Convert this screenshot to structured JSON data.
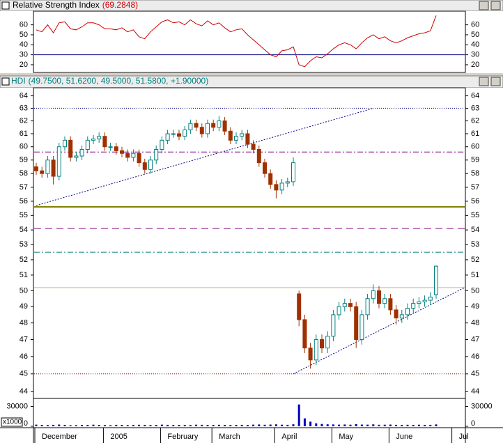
{
  "chart_data": [
    {
      "type": "line",
      "title": "Relative Strength Index",
      "subtitle": "(69.2848)",
      "color": "#cc0000",
      "values": [
        55,
        53,
        60,
        52,
        62,
        63,
        56,
        55,
        58,
        62,
        62,
        60,
        56,
        56,
        55,
        57,
        53,
        55,
        48,
        46,
        53,
        58,
        63,
        65,
        62,
        63,
        60,
        65,
        61,
        59,
        64,
        60,
        62,
        57,
        53,
        55,
        56,
        50,
        45,
        40,
        35,
        30,
        28,
        34,
        35,
        38,
        20,
        18,
        24,
        28,
        27,
        31,
        36,
        40,
        42,
        40,
        36,
        42,
        47,
        50,
        46,
        48,
        44,
        42,
        44,
        47,
        49,
        51,
        52,
        54,
        69.2848,
        null,
        null,
        null,
        null,
        null
      ],
      "ylim": [
        13,
        73
      ],
      "yticks": [
        20,
        30,
        40,
        50,
        60
      ],
      "levels": [
        {
          "value": 30,
          "color": "#000080",
          "style": "solid"
        }
      ]
    },
    {
      "type": "candlestick",
      "title": "HDI",
      "subtitle": "(49.7500, 51.6200, 49.5000, 51.5800, +1.90000)",
      "up_color": "#008080",
      "down_color": "#a03000",
      "log_scale": true,
      "open": [
        58.5,
        58.2,
        58.0,
        59.0,
        57.8,
        60.0,
        60.5,
        59.2,
        59.3,
        59.8,
        60.5,
        60.6,
        60.8,
        60.0,
        60.0,
        59.7,
        59.5,
        59.2,
        59.5,
        58.8,
        58.3,
        59.0,
        59.8,
        60.5,
        61.0,
        61.0,
        60.8,
        61.3,
        61.8,
        61.5,
        61.0,
        61.8,
        61.5,
        62.0,
        61.2,
        60.5,
        60.8,
        61.0,
        60.2,
        59.8,
        58.8,
        58.0,
        57.2,
        56.8,
        57.3,
        57.4,
        49.8,
        48.2,
        46.5,
        45.8,
        47.0,
        46.5,
        47.2,
        48.5,
        49.0,
        49.2,
        49.0,
        47.0,
        48.5,
        49.5,
        50.0,
        49.2,
        49.5,
        48.8,
        48.3,
        48.5,
        48.9,
        49.2,
        49.3,
        49.4,
        49.75,
        null,
        null,
        null,
        null,
        null
      ],
      "high": [
        58.8,
        58.5,
        59.3,
        59.3,
        60.3,
        60.8,
        60.8,
        59.6,
        60.1,
        60.8,
        60.9,
        61.1,
        61.1,
        60.3,
        60.3,
        60.0,
        59.8,
        59.8,
        59.8,
        59.1,
        59.3,
        60.1,
        60.8,
        61.3,
        61.3,
        61.3,
        61.6,
        62.1,
        62.1,
        61.8,
        62.1,
        62.1,
        62.4,
        62.3,
        61.5,
        61.1,
        61.3,
        61.3,
        60.5,
        60.1,
        59.1,
        58.3,
        57.5,
        57.6,
        57.7,
        59.2,
        50.0,
        48.5,
        46.8,
        47.3,
        47.3,
        47.5,
        48.8,
        49.3,
        49.5,
        49.5,
        49.3,
        48.8,
        49.8,
        50.4,
        50.3,
        49.8,
        49.8,
        49.1,
        48.8,
        49.2,
        49.5,
        49.6,
        49.7,
        49.9,
        51.62,
        null,
        null,
        null,
        null,
        null
      ],
      "low": [
        57.9,
        57.7,
        57.7,
        57.2,
        57.5,
        59.7,
        58.9,
        58.9,
        59.0,
        59.5,
        60.2,
        60.3,
        59.7,
        59.7,
        59.4,
        59.2,
        58.9,
        58.9,
        58.5,
        58.0,
        58.0,
        58.7,
        59.5,
        60.2,
        60.7,
        60.5,
        60.5,
        61.0,
        61.2,
        60.7,
        60.7,
        61.2,
        61.2,
        60.9,
        60.2,
        60.2,
        60.5,
        59.9,
        59.5,
        58.5,
        57.7,
        56.9,
        56.2,
        56.5,
        57.0,
        57.1,
        47.8,
        46.2,
        45.3,
        45.5,
        46.2,
        46.2,
        46.9,
        48.2,
        48.7,
        48.7,
        46.5,
        46.7,
        48.2,
        49.2,
        48.9,
        48.9,
        48.5,
        47.9,
        48.0,
        48.2,
        48.6,
        48.9,
        49.0,
        49.1,
        49.5,
        null,
        null,
        null,
        null,
        null
      ],
      "close": [
        58.2,
        58.0,
        59.0,
        57.8,
        60.0,
        60.5,
        59.2,
        59.3,
        59.8,
        60.5,
        60.6,
        60.8,
        60.0,
        60.0,
        59.7,
        59.5,
        59.2,
        59.5,
        58.8,
        58.3,
        59.0,
        59.8,
        60.5,
        61.0,
        61.0,
        60.8,
        61.3,
        61.8,
        61.5,
        61.0,
        61.8,
        61.5,
        62.0,
        61.2,
        60.5,
        60.8,
        61.0,
        60.2,
        59.8,
        58.8,
        58.0,
        57.2,
        56.8,
        57.3,
        57.4,
        58.8,
        48.2,
        46.5,
        45.8,
        47.0,
        46.5,
        47.2,
        48.5,
        49.0,
        49.2,
        49.0,
        47.0,
        48.5,
        49.5,
        50.0,
        49.2,
        49.5,
        48.8,
        48.3,
        48.5,
        48.9,
        49.2,
        49.3,
        49.4,
        49.6,
        51.58,
        null,
        null,
        null,
        null,
        null
      ],
      "ylim": [
        43.7,
        64.6
      ],
      "yticks": [
        44,
        45,
        46,
        47,
        48,
        49,
        50,
        51,
        52,
        53,
        54,
        55,
        56,
        57,
        58,
        59,
        60,
        61,
        62,
        63,
        64
      ],
      "levels": [
        {
          "value": 63,
          "color": "#000080",
          "style": "dotted"
        },
        {
          "value": 59.6,
          "color": "#800080",
          "style": "dashdot"
        },
        {
          "value": 55.6,
          "color": "#808000",
          "style": "thick"
        },
        {
          "value": 54.1,
          "color": "#800080",
          "style": "dashed"
        },
        {
          "value": 52.5,
          "color": "#008080",
          "style": "dashdot"
        },
        {
          "value": 50.2,
          "color": "#d2b48c",
          "style": "solid"
        },
        {
          "value": 45,
          "color": "#800000",
          "style": "dotted"
        }
      ],
      "trendlines": [
        {
          "color": "#000080",
          "points": [
            [
              0,
              55.7
            ],
            [
              59,
              63
            ]
          ]
        },
        {
          "color": "#000080",
          "points": [
            [
              45,
              45
            ],
            [
              75,
              50.2
            ]
          ]
        }
      ]
    },
    {
      "type": "bar",
      "color": "#0000c0",
      "unit_label": "x1000",
      "categories": [
        "December",
        null,
        null,
        null,
        null,
        null,
        null,
        null,
        null,
        null,
        null,
        null,
        "2005",
        null,
        null,
        null,
        null,
        null,
        null,
        null,
        null,
        null,
        "February",
        null,
        null,
        null,
        null,
        null,
        null,
        null,
        null,
        "March",
        null,
        null,
        null,
        null,
        null,
        null,
        null,
        null,
        null,
        null,
        "April",
        null,
        null,
        null,
        null,
        null,
        null,
        null,
        null,
        null,
        "May",
        null,
        null,
        null,
        null,
        null,
        null,
        null,
        null,
        null,
        "June",
        null,
        null,
        null,
        null,
        null,
        null,
        null,
        null,
        null,
        null,
        "Jul",
        null,
        null
      ],
      "values": [
        2500,
        2000,
        1800,
        2200,
        2600,
        2000,
        1500,
        1700,
        2100,
        1900,
        2400,
        2000,
        1800,
        1600,
        2200,
        2000,
        1700,
        1900,
        2300,
        2100,
        1800,
        2000,
        2500,
        2200,
        1900,
        2100,
        2000,
        1800,
        2400,
        2200,
        2000,
        1900,
        2300,
        2100,
        1800,
        2000,
        2200,
        1900,
        2500,
        2700,
        2300,
        2600,
        2900,
        2400,
        2200,
        3000,
        33000,
        12000,
        7000,
        4500,
        3500,
        3000,
        2800,
        2500,
        2700,
        2400,
        3200,
        2600,
        2500,
        2900,
        2300,
        2400,
        2600,
        2200,
        2000,
        2300,
        2100,
        2400,
        2000,
        2200,
        2800,
        null,
        null,
        null,
        null,
        null
      ],
      "ylim": [
        0,
        39000
      ],
      "yticks": [
        0,
        30000
      ]
    }
  ]
}
